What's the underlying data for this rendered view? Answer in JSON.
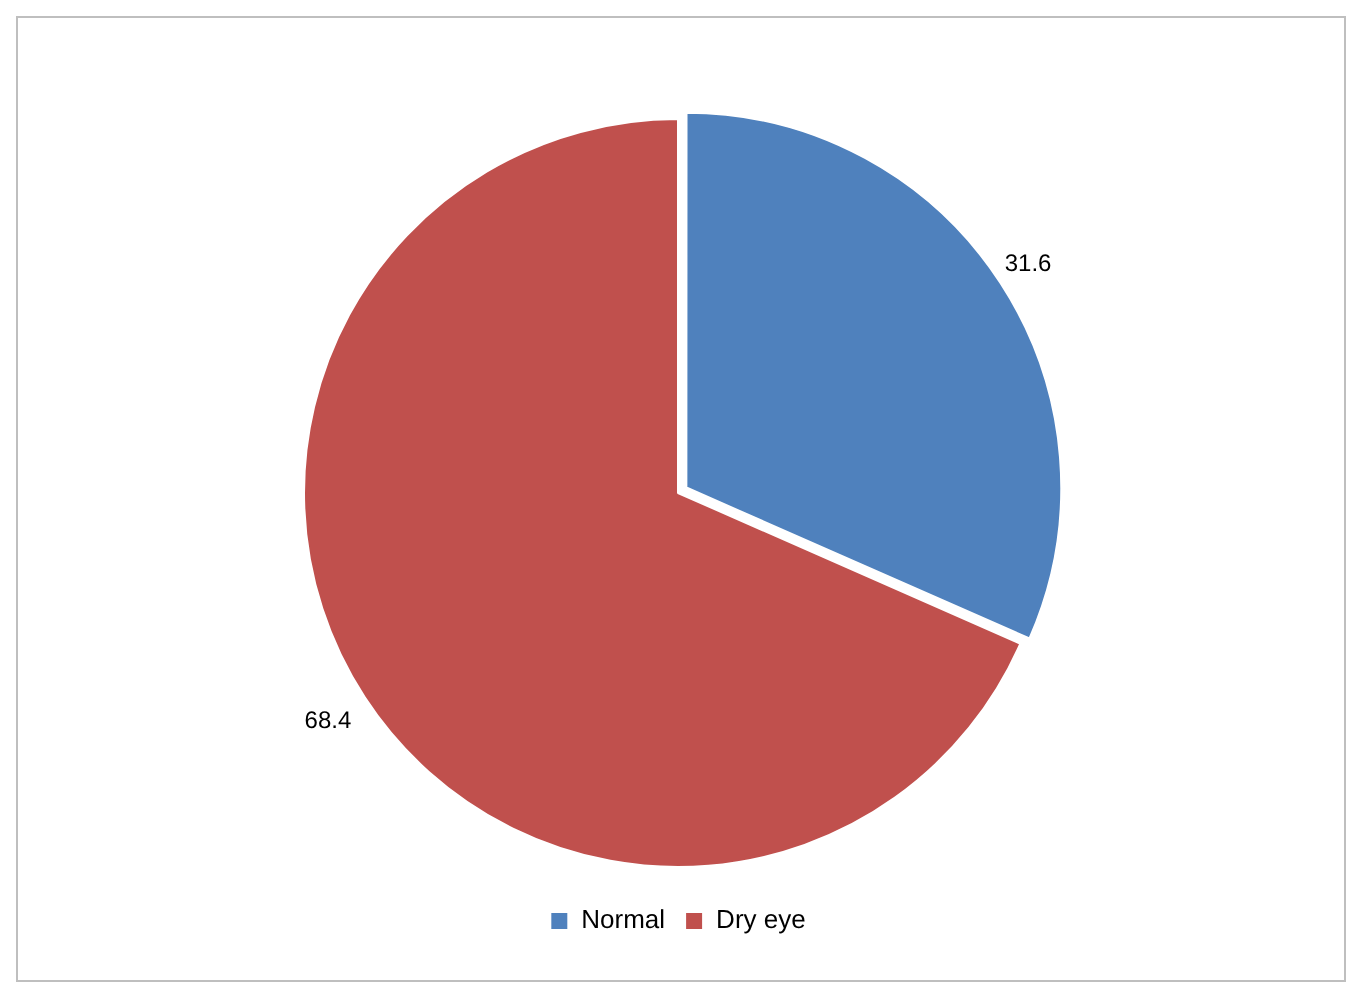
{
  "chart_data": {
    "type": "pie",
    "categories": [
      "Normal",
      "Dry eye"
    ],
    "values": [
      31.6,
      68.4
    ],
    "colors": [
      "#4f81bd",
      "#c0504d"
    ],
    "data_labels": true,
    "legend": "bottom"
  }
}
